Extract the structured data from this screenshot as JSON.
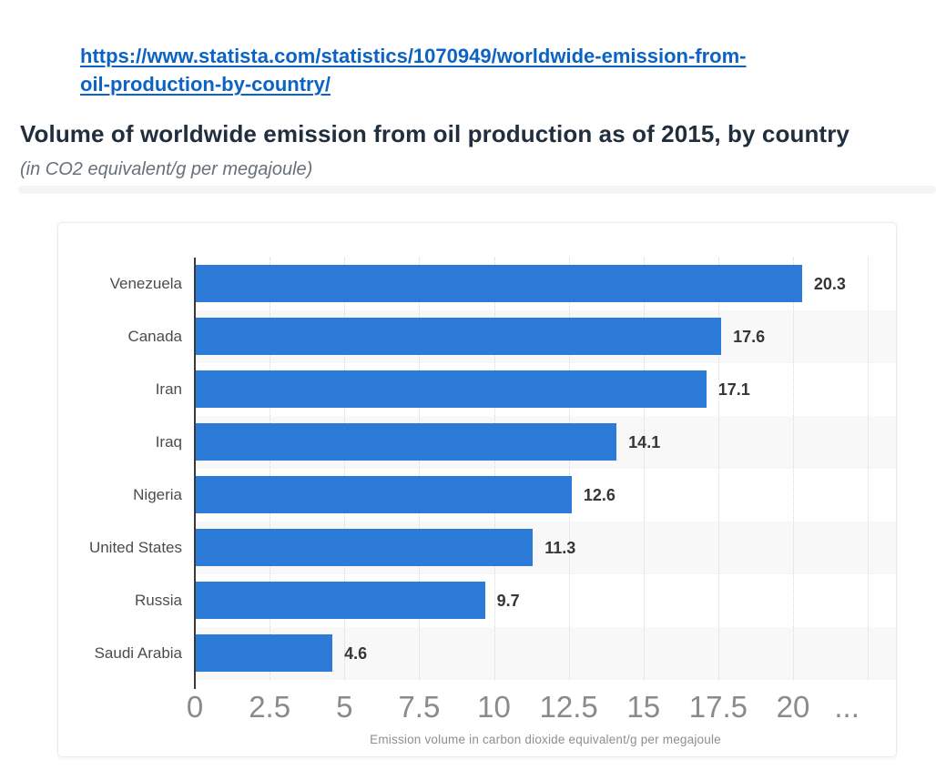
{
  "header": {
    "link": {
      "line1": "https://www.statista.com/statistics/1070949/worldwide-emission-from-",
      "line2": "oil-production-by-country/"
    },
    "title": "Volume of worldwide emission from oil production as of 2015, by country",
    "subtitle": "(in CO2 equivalent/g per megajoule)"
  },
  "chart_data": {
    "type": "bar",
    "orientation": "horizontal",
    "title": "Volume of worldwide emission from oil production as of 2015, by country",
    "subtitle": "(in CO2 equivalent/g per megajoule)",
    "categories": [
      "Venezuela",
      "Canada",
      "Iran",
      "Iraq",
      "Nigeria",
      "United States",
      "Russia",
      "Saudi Arabia"
    ],
    "values": [
      20.3,
      17.6,
      17.1,
      14.1,
      12.6,
      11.3,
      9.7,
      4.6
    ],
    "value_labels": [
      "20.3",
      "17.6",
      "17.1",
      "14.1",
      "12.6",
      "11.3",
      "9.7",
      "4.6"
    ],
    "xlabel": "Emission volume in carbon dioxide equivalent/g per megajoule",
    "xlim": [
      0,
      23.4
    ],
    "x_ticks": [
      0,
      2.5,
      5,
      7.5,
      10,
      12.5,
      15,
      17.5,
      20
    ],
    "x_tick_labels": [
      "0",
      "2.5",
      "5",
      "7.5",
      "10",
      "12.5",
      "15",
      "17.5",
      "20"
    ],
    "overflow_tick_label": "...",
    "overflow_tick_pos": 21.8,
    "gridline_values": [
      2.5,
      5,
      7.5,
      10,
      12.5,
      15,
      17.5,
      20,
      22.5
    ],
    "grid": "vertical-dotted",
    "legend": "none",
    "stripe_rows": [
      1,
      3,
      5,
      7
    ],
    "colors": {
      "bar": "#2c7bd9",
      "stripe": "#f8f8f8",
      "gridline": "#d7d7d7",
      "axis_line": "#3a3a3a",
      "tick_label": "#8a8a8a",
      "category_label": "#4c4c4c",
      "value_label": "#363636",
      "axis_title": "#8e8e8e"
    }
  },
  "colors": {
    "link": "#0c63c4",
    "title": "#202e3e",
    "subtitle": "#67707b"
  }
}
